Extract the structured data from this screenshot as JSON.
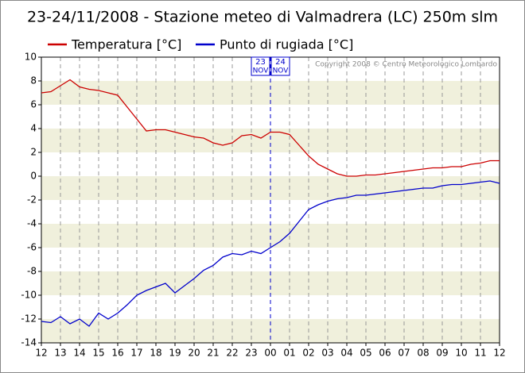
{
  "chart_data": {
    "type": "line",
    "title": "23-24/11/2008 - Stazione meteo di Valmadrera (LC) 250m slm",
    "annotations": [
      "23",
      "NOV",
      "24",
      "NOV",
      "Copyright 2008 © Centro Meteorologico Lombardo"
    ],
    "x": [
      12,
      12.5,
      13,
      13.5,
      14,
      14.5,
      15,
      15.5,
      16,
      16.5,
      17,
      17.5,
      18,
      18.5,
      19,
      19.5,
      20,
      20.5,
      21,
      21.5,
      22,
      22.5,
      23,
      23.5,
      24,
      24.5,
      25,
      25.5,
      26,
      26.5,
      27,
      27.5,
      28,
      28.5,
      29,
      29.5,
      30,
      30.5,
      31,
      31.5,
      32,
      32.5,
      33,
      33.5,
      34,
      34.5,
      35,
      35.5,
      36
    ],
    "series": [
      {
        "name": "Temperatura [°C]",
        "color": "#cc0000",
        "values": [
          7.0,
          7.1,
          7.6,
          8.1,
          7.5,
          7.3,
          7.2,
          7.0,
          6.8,
          5.8,
          4.8,
          3.8,
          3.9,
          3.9,
          3.7,
          3.5,
          3.3,
          3.2,
          2.8,
          2.6,
          2.8,
          3.4,
          3.5,
          3.2,
          3.7,
          3.7,
          3.5,
          2.6,
          1.7,
          1.0,
          0.6,
          0.2,
          0.0,
          0.0,
          0.1,
          0.1,
          0.2,
          0.3,
          0.4,
          0.5,
          0.6,
          0.7,
          0.7,
          0.8,
          0.8,
          1.0,
          1.1,
          1.3,
          1.3
        ]
      },
      {
        "name": "Punto di rugiada [°C]",
        "color": "#0000cc",
        "values": [
          -12.2,
          -12.3,
          -11.8,
          -12.4,
          -12.0,
          -12.6,
          -11.5,
          -12.0,
          -11.5,
          -10.8,
          -10.0,
          -9.6,
          -9.3,
          -9.0,
          -9.8,
          -9.2,
          -8.6,
          -7.9,
          -7.5,
          -6.8,
          -6.5,
          -6.6,
          -6.3,
          -6.5,
          -6.0,
          -5.5,
          -4.8,
          -3.8,
          -2.8,
          -2.4,
          -2.1,
          -1.9,
          -1.8,
          -1.6,
          -1.6,
          -1.5,
          -1.4,
          -1.3,
          -1.2,
          -1.1,
          -1.0,
          -1.0,
          -0.8,
          -0.7,
          -0.7,
          -0.6,
          -0.5,
          -0.4,
          -0.6
        ]
      }
    ],
    "xlim": [
      12,
      36
    ],
    "xticks": [
      12,
      13,
      14,
      15,
      16,
      17,
      18,
      19,
      20,
      21,
      22,
      23,
      {
        "value": 24,
        "label": "00"
      },
      {
        "value": 25,
        "label": "01"
      },
      {
        "value": 26,
        "label": "02"
      },
      {
        "value": 27,
        "label": "03"
      },
      {
        "value": 28,
        "label": "04"
      },
      {
        "value": 29,
        "label": "05"
      },
      {
        "value": 30,
        "label": "06"
      },
      {
        "value": 31,
        "label": "07"
      },
      {
        "value": 32,
        "label": "08"
      },
      {
        "value": 33,
        "label": "09"
      },
      {
        "value": 34,
        "label": "10"
      },
      {
        "value": 35,
        "label": "11"
      },
      {
        "value": 36,
        "label": "12"
      }
    ],
    "ylim": [
      -14,
      10
    ],
    "yticks": [
      -14,
      -12,
      -10,
      -8,
      -6,
      -4,
      -2,
      0,
      2,
      4,
      6,
      8,
      10
    ],
    "grid": true
  }
}
